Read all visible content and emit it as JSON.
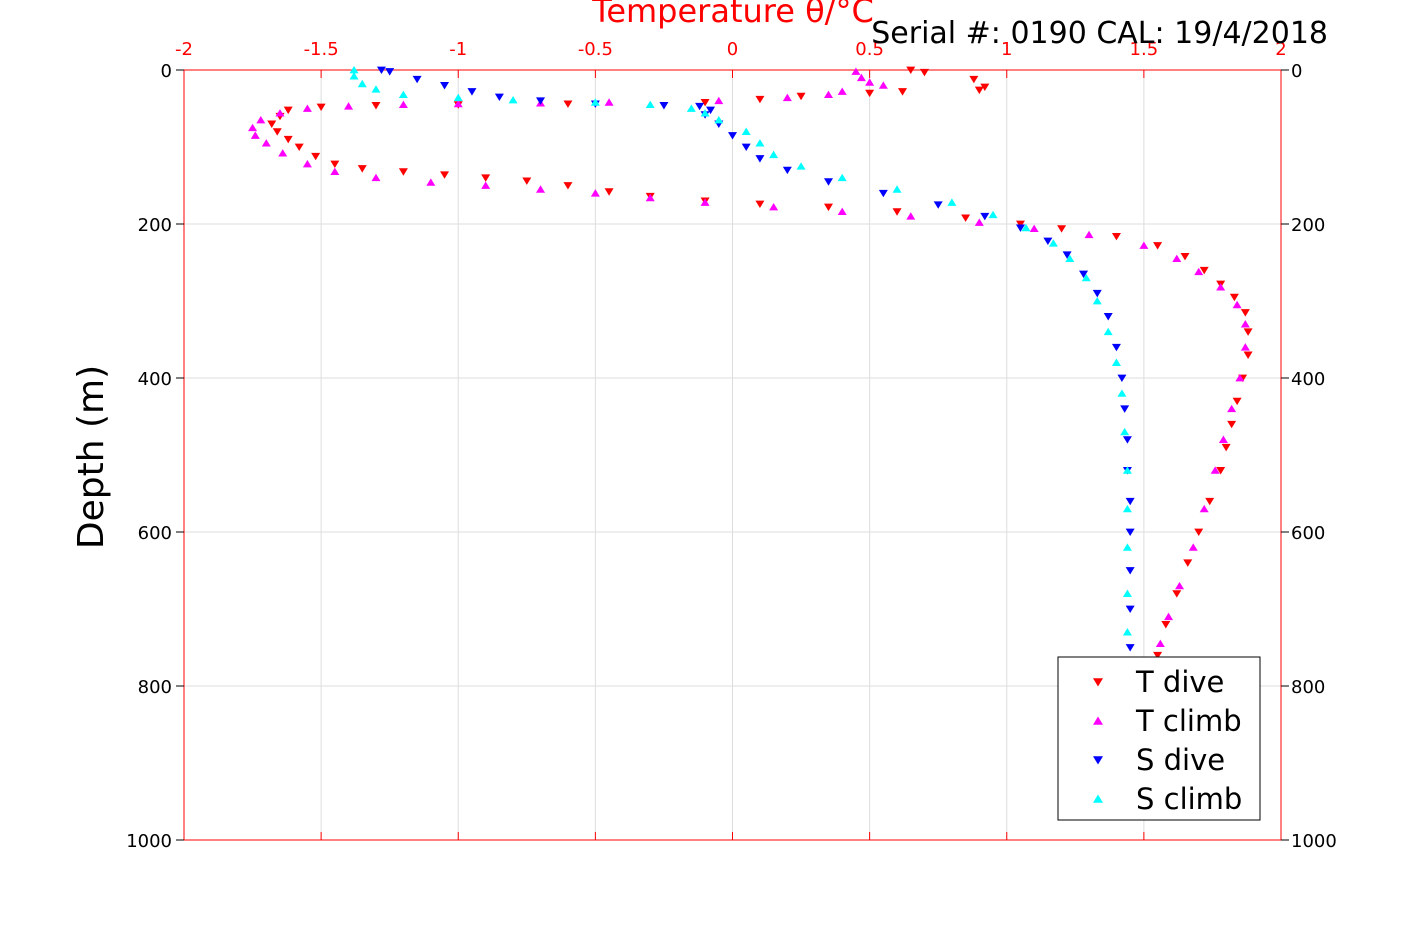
{
  "chart_data": {
    "type": "scatter",
    "title": "Serial #: 0190  CAL: 19/4/2018",
    "xlabel": "Temperature θ/°C",
    "ylabel": "Depth (m)",
    "xlim": [
      -2,
      2
    ],
    "ylim": [
      0,
      1000
    ],
    "y_reversed": true,
    "x_axis_position": "top",
    "x_ticks": [
      -2,
      -1.5,
      -1,
      -0.5,
      0,
      0.5,
      1,
      1.5,
      2
    ],
    "x_tick_labels": [
      "-2",
      "-1.5",
      "-1",
      "-0.5",
      "0",
      "0.5",
      "1",
      "1.5",
      "2"
    ],
    "y_ticks": [
      0,
      200,
      400,
      600,
      800,
      1000
    ],
    "y_tick_labels": [
      "0",
      "200",
      "400",
      "600",
      "800",
      "1000"
    ],
    "y_ticks_right": true,
    "grid": true,
    "legend_position": "bottom-right",
    "colors": {
      "axis": "#ff0000",
      "grid": "#dddddd"
    },
    "series": [
      {
        "name": "T dive",
        "marker": "triangle-down",
        "color": "#ff0000",
        "points": [
          [
            0.65,
            0
          ],
          [
            0.7,
            3
          ],
          [
            0.88,
            12
          ],
          [
            0.92,
            22
          ],
          [
            0.9,
            26
          ],
          [
            0.62,
            28
          ],
          [
            0.5,
            30
          ],
          [
            0.25,
            34
          ],
          [
            0.1,
            38
          ],
          [
            -0.1,
            42
          ],
          [
            -0.6,
            44
          ],
          [
            -1.0,
            45
          ],
          [
            -1.3,
            46
          ],
          [
            -1.5,
            48
          ],
          [
            -1.62,
            52
          ],
          [
            -1.65,
            60
          ],
          [
            -1.68,
            70
          ],
          [
            -1.66,
            80
          ],
          [
            -1.62,
            90
          ],
          [
            -1.58,
            100
          ],
          [
            -1.52,
            112
          ],
          [
            -1.45,
            122
          ],
          [
            -1.35,
            128
          ],
          [
            -1.2,
            132
          ],
          [
            -1.05,
            136
          ],
          [
            -0.9,
            140
          ],
          [
            -0.75,
            144
          ],
          [
            -0.6,
            150
          ],
          [
            -0.45,
            158
          ],
          [
            -0.3,
            164
          ],
          [
            -0.1,
            170
          ],
          [
            0.1,
            174
          ],
          [
            0.35,
            178
          ],
          [
            0.6,
            184
          ],
          [
            0.85,
            192
          ],
          [
            1.05,
            200
          ],
          [
            1.2,
            206
          ],
          [
            1.4,
            216
          ],
          [
            1.55,
            228
          ],
          [
            1.65,
            242
          ],
          [
            1.72,
            260
          ],
          [
            1.78,
            278
          ],
          [
            1.83,
            295
          ],
          [
            1.87,
            315
          ],
          [
            1.88,
            340
          ],
          [
            1.88,
            370
          ],
          [
            1.86,
            400
          ],
          [
            1.84,
            430
          ],
          [
            1.82,
            460
          ],
          [
            1.8,
            490
          ],
          [
            1.78,
            520
          ],
          [
            1.74,
            560
          ],
          [
            1.7,
            600
          ],
          [
            1.66,
            640
          ],
          [
            1.62,
            680
          ],
          [
            1.58,
            720
          ],
          [
            1.55,
            760
          ],
          [
            1.53,
            780
          ]
        ]
      },
      {
        "name": "T climb",
        "marker": "triangle-up",
        "color": "#ff00ff",
        "points": [
          [
            0.45,
            2
          ],
          [
            0.47,
            10
          ],
          [
            0.5,
            16
          ],
          [
            0.55,
            20
          ],
          [
            0.4,
            28
          ],
          [
            0.35,
            32
          ],
          [
            0.2,
            36
          ],
          [
            -0.05,
            40
          ],
          [
            -0.45,
            42
          ],
          [
            -0.7,
            43
          ],
          [
            -1.0,
            44
          ],
          [
            -1.2,
            45
          ],
          [
            -1.4,
            47
          ],
          [
            -1.55,
            50
          ],
          [
            -1.65,
            56
          ],
          [
            -1.72,
            65
          ],
          [
            -1.75,
            75
          ],
          [
            -1.74,
            85
          ],
          [
            -1.7,
            95
          ],
          [
            -1.64,
            108
          ],
          [
            -1.55,
            122
          ],
          [
            -1.45,
            132
          ],
          [
            -1.3,
            140
          ],
          [
            -1.1,
            146
          ],
          [
            -0.9,
            150
          ],
          [
            -0.7,
            155
          ],
          [
            -0.5,
            160
          ],
          [
            -0.3,
            166
          ],
          [
            -0.1,
            172
          ],
          [
            0.15,
            178
          ],
          [
            0.4,
            184
          ],
          [
            0.65,
            190
          ],
          [
            0.9,
            198
          ],
          [
            1.1,
            206
          ],
          [
            1.3,
            214
          ],
          [
            1.5,
            228
          ],
          [
            1.62,
            245
          ],
          [
            1.7,
            262
          ],
          [
            1.78,
            282
          ],
          [
            1.84,
            305
          ],
          [
            1.87,
            330
          ],
          [
            1.87,
            360
          ],
          [
            1.85,
            400
          ],
          [
            1.82,
            440
          ],
          [
            1.79,
            480
          ],
          [
            1.76,
            520
          ],
          [
            1.72,
            570
          ],
          [
            1.68,
            620
          ],
          [
            1.63,
            670
          ],
          [
            1.59,
            710
          ],
          [
            1.56,
            745
          ],
          [
            1.53,
            780
          ]
        ]
      },
      {
        "name": "S dive",
        "marker": "triangle-down",
        "color": "#0000ff",
        "points": [
          [
            -1.28,
            0
          ],
          [
            -1.25,
            2
          ],
          [
            -1.15,
            12
          ],
          [
            -1.05,
            20
          ],
          [
            -0.95,
            28
          ],
          [
            -0.85,
            35
          ],
          [
            -0.7,
            40
          ],
          [
            -0.5,
            44
          ],
          [
            -0.25,
            46
          ],
          [
            -0.12,
            47
          ],
          [
            -0.08,
            52
          ],
          [
            -0.1,
            58
          ],
          [
            -0.05,
            70
          ],
          [
            0.0,
            85
          ],
          [
            0.05,
            100
          ],
          [
            0.1,
            115
          ],
          [
            0.2,
            130
          ],
          [
            0.35,
            145
          ],
          [
            0.55,
            160
          ],
          [
            0.75,
            175
          ],
          [
            0.92,
            190
          ],
          [
            1.05,
            205
          ],
          [
            1.15,
            222
          ],
          [
            1.22,
            240
          ],
          [
            1.28,
            265
          ],
          [
            1.33,
            290
          ],
          [
            1.37,
            320
          ],
          [
            1.4,
            360
          ],
          [
            1.42,
            400
          ],
          [
            1.43,
            440
          ],
          [
            1.44,
            480
          ],
          [
            1.44,
            520
          ],
          [
            1.45,
            560
          ],
          [
            1.45,
            600
          ],
          [
            1.45,
            650
          ],
          [
            1.45,
            700
          ],
          [
            1.45,
            750
          ],
          [
            1.45,
            770
          ]
        ]
      },
      {
        "name": "S climb",
        "marker": "triangle-up",
        "color": "#00ffff",
        "points": [
          [
            -1.38,
            0
          ],
          [
            -1.38,
            8
          ],
          [
            -1.35,
            18
          ],
          [
            -1.3,
            25
          ],
          [
            -1.2,
            32
          ],
          [
            -1.0,
            36
          ],
          [
            -0.8,
            39
          ],
          [
            -0.5,
            42
          ],
          [
            -0.3,
            45
          ],
          [
            -0.15,
            50
          ],
          [
            -0.1,
            56
          ],
          [
            -0.05,
            65
          ],
          [
            0.05,
            80
          ],
          [
            0.1,
            95
          ],
          [
            0.15,
            110
          ],
          [
            0.25,
            125
          ],
          [
            0.4,
            140
          ],
          [
            0.6,
            155
          ],
          [
            0.8,
            172
          ],
          [
            0.95,
            188
          ],
          [
            1.07,
            205
          ],
          [
            1.17,
            225
          ],
          [
            1.23,
            245
          ],
          [
            1.29,
            270
          ],
          [
            1.33,
            300
          ],
          [
            1.37,
            340
          ],
          [
            1.4,
            380
          ],
          [
            1.42,
            420
          ],
          [
            1.43,
            470
          ],
          [
            1.44,
            520
          ],
          [
            1.44,
            570
          ],
          [
            1.44,
            620
          ],
          [
            1.44,
            680
          ],
          [
            1.44,
            730
          ],
          [
            1.44,
            770
          ]
        ]
      }
    ]
  }
}
